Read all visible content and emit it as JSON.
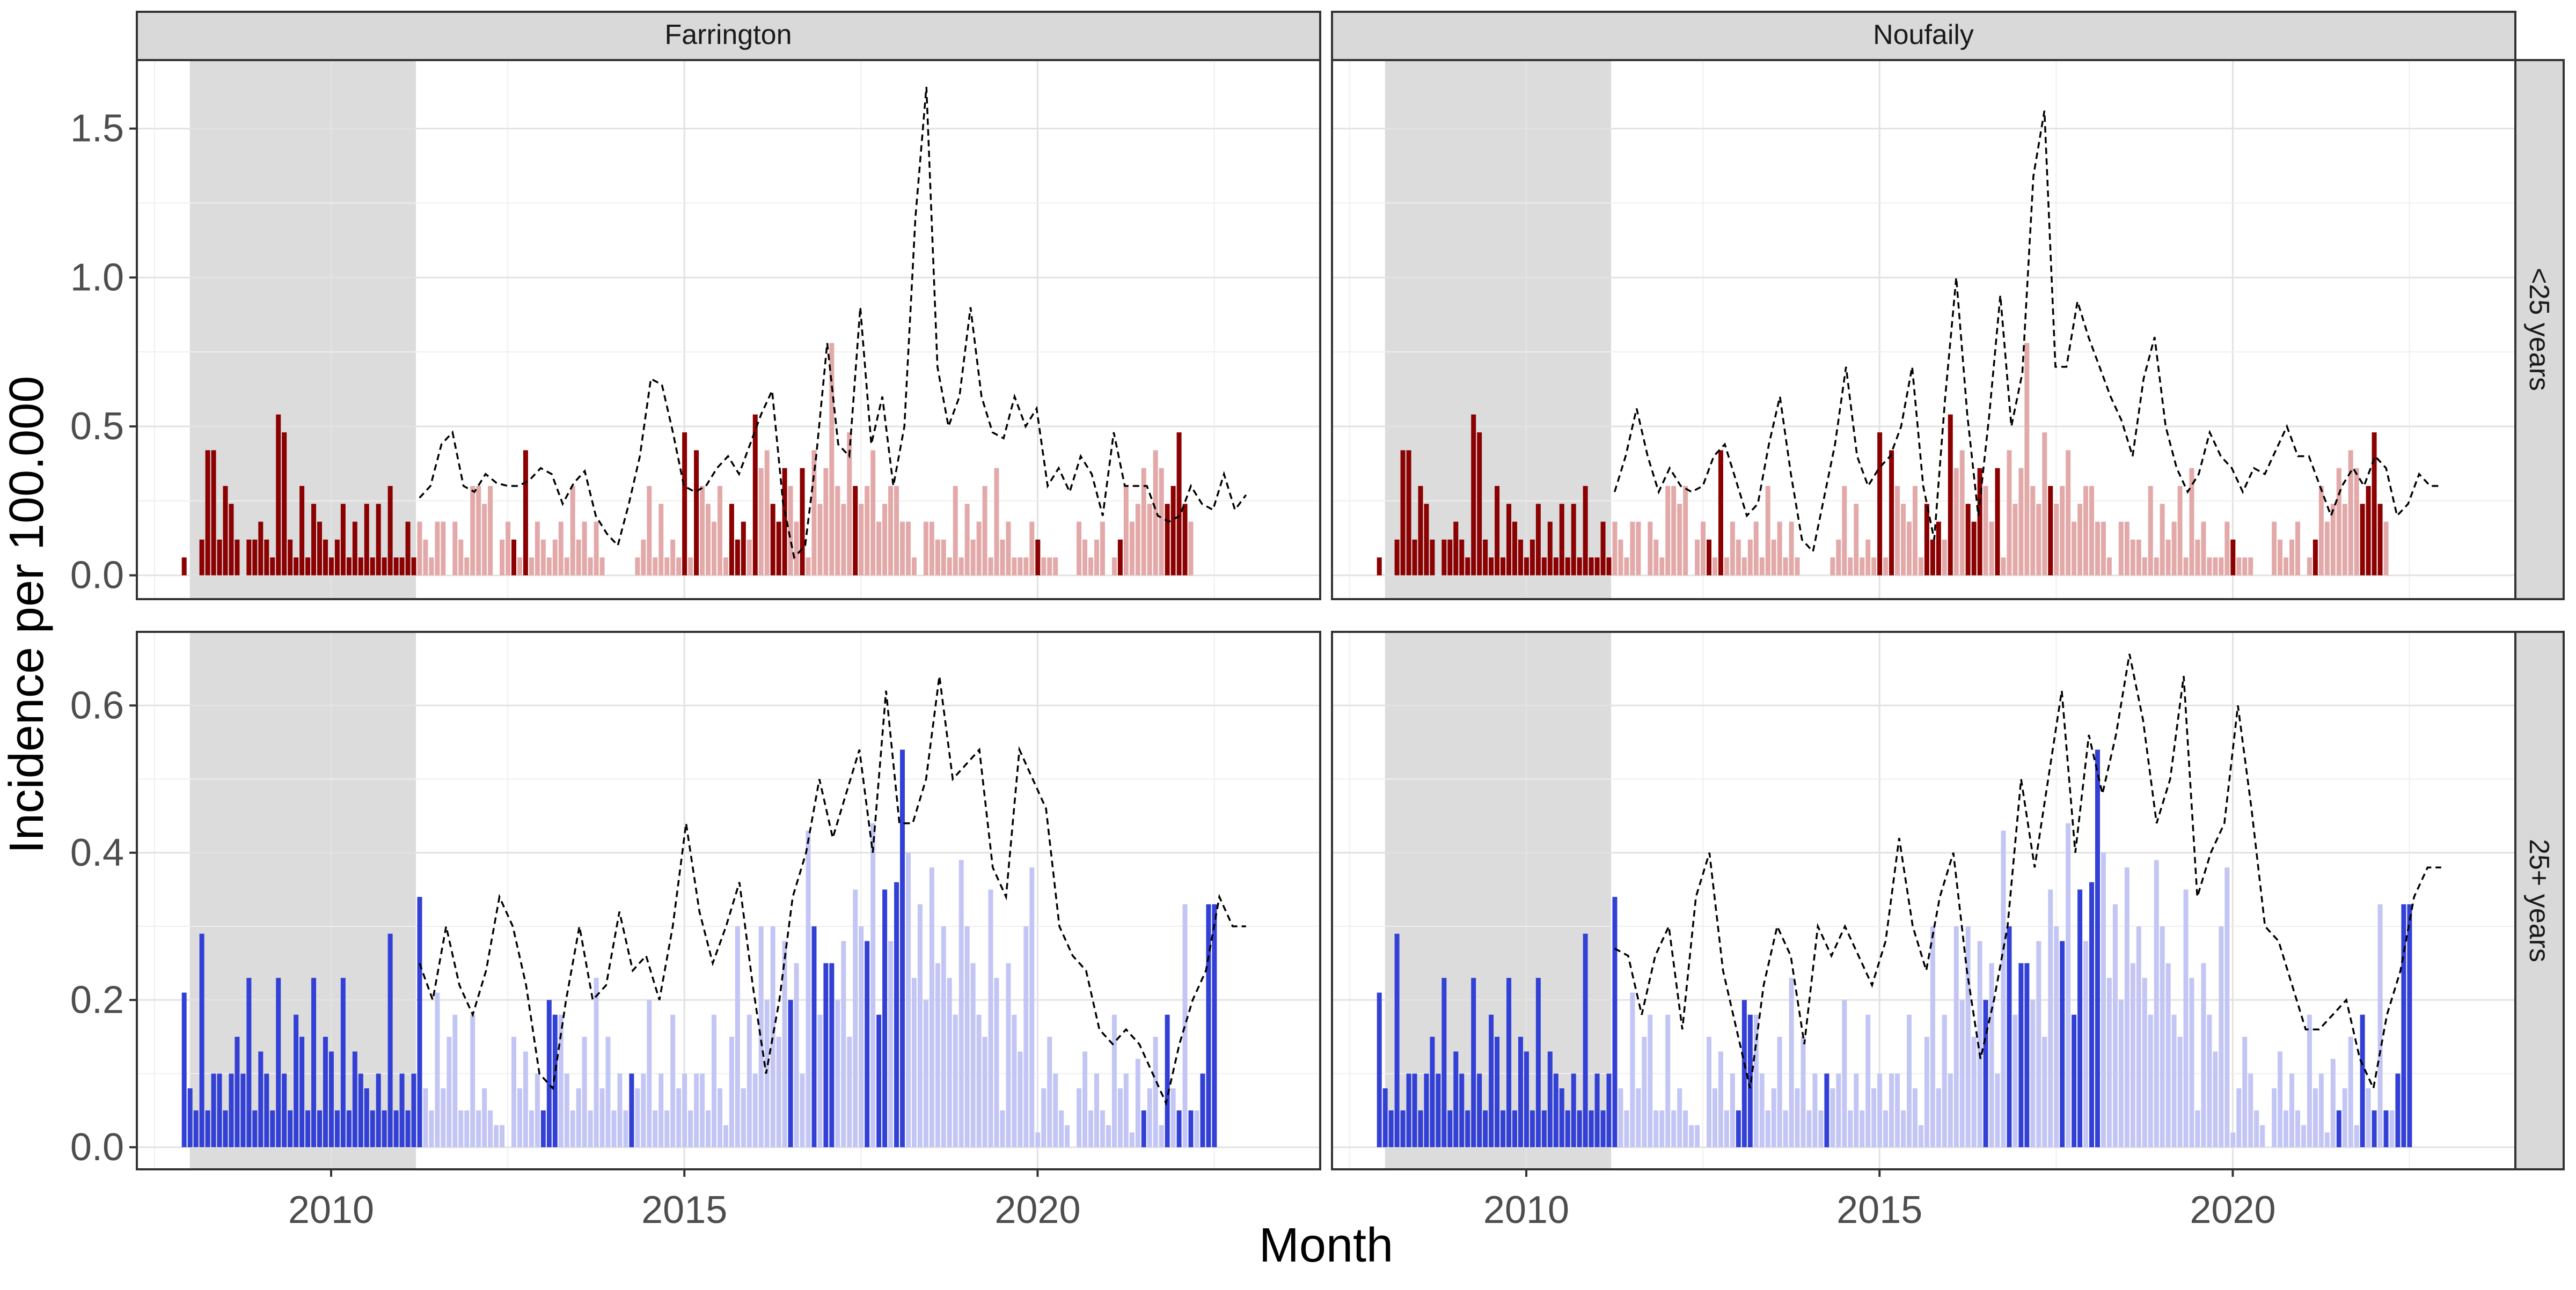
{
  "chart_data": {
    "type": "bar",
    "layout": "facet-grid 2x2",
    "xlabel": "Month",
    "ylabel": "Incidence per 100.000",
    "columns": [
      "Farrington",
      "Noufaily"
    ],
    "rows": [
      "<25 years",
      "25+ years"
    ],
    "x_ticks": [
      2010,
      2015,
      2020
    ],
    "x_range": [
      2007.25,
      2024.0
    ],
    "shaded_period": {
      "from": 2008.0,
      "to": 2011.2
    },
    "bar_start": 2007.92,
    "bar_step": 0.08333,
    "grid": true,
    "panels": [
      {
        "row": "<25 years",
        "y_ticks": [
          "0.0",
          "0.5",
          "1.0",
          "1.5"
        ],
        "y_tick_values": [
          0.0,
          0.5,
          1.0,
          1.5
        ],
        "ylim": [
          -0.08,
          1.73
        ],
        "colors": {
          "bar": "#8b0000",
          "bar_light": "#e3a9a9",
          "line": "#000000"
        },
        "values": [
          0.06,
          0.0,
          0.0,
          0.12,
          0.42,
          0.42,
          0.12,
          0.3,
          0.24,
          0.12,
          0.0,
          0.12,
          0.12,
          0.18,
          0.12,
          0.06,
          0.54,
          0.48,
          0.12,
          0.06,
          0.3,
          0.06,
          0.24,
          0.18,
          0.12,
          0.06,
          0.12,
          0.24,
          0.06,
          0.18,
          0.06,
          0.24,
          0.06,
          0.24,
          0.06,
          0.3,
          0.06,
          0.06,
          0.18,
          0.06,
          0.18,
          0.12,
          0.06,
          0.18,
          0.18,
          0.0,
          0.18,
          0.12,
          0.06,
          0.3,
          0.3,
          0.24,
          0.3,
          0.0,
          0.12,
          0.18,
          0.12,
          0.06,
          0.42,
          0.06,
          0.18,
          0.12,
          0.06,
          0.12,
          0.18,
          0.06,
          0.3,
          0.12,
          0.18,
          0.06,
          0.18,
          0.06,
          0.0,
          0.0,
          0.0,
          0.0,
          0.0,
          0.06,
          0.12,
          0.3,
          0.06,
          0.24,
          0.06,
          0.12,
          0.06,
          0.48,
          0.06,
          0.42,
          0.3,
          0.24,
          0.18,
          0.3,
          0.06,
          0.24,
          0.12,
          0.18,
          0.12,
          0.54,
          0.36,
          0.42,
          0.24,
          0.18,
          0.36,
          0.3,
          0.18,
          0.36,
          0.06,
          0.42,
          0.24,
          0.36,
          0.78,
          0.3,
          0.24,
          0.48,
          0.3,
          0.24,
          0.3,
          0.42,
          0.18,
          0.24,
          0.3,
          0.3,
          0.18,
          0.18,
          0.06,
          0.0,
          0.18,
          0.18,
          0.12,
          0.12,
          0.06,
          0.3,
          0.06,
          0.24,
          0.12,
          0.18,
          0.3,
          0.06,
          0.36,
          0.12,
          0.18,
          0.06,
          0.06,
          0.06,
          0.18,
          0.12,
          0.06,
          0.06,
          0.06,
          0.0,
          0.0,
          0.0,
          0.18,
          0.12,
          0.06,
          0.12,
          0.18,
          0.0,
          0.06,
          0.12,
          0.3,
          0.18,
          0.24,
          0.36,
          0.24,
          0.42,
          0.36,
          0.24,
          0.3,
          0.48,
          0.24,
          0.18
        ],
        "highlight": [
          0,
          1,
          2,
          3,
          4,
          5,
          6,
          7,
          8,
          9,
          10,
          11,
          12,
          13,
          14,
          15,
          16,
          17,
          18,
          19,
          20,
          21,
          22,
          23,
          24,
          25,
          26,
          27,
          28,
          29,
          30,
          31,
          32,
          33,
          34,
          35,
          36,
          37,
          38,
          39,
          56,
          58,
          85,
          87,
          93,
          94,
          95,
          97,
          100,
          101,
          102,
          105,
          114,
          145,
          159,
          167,
          168,
          169,
          170,
          172,
          175
        ]
      },
      {
        "row": "25+ years",
        "y_ticks": [
          "0.0",
          "0.2",
          "0.4",
          "0.6"
        ],
        "y_tick_values": [
          0.0,
          0.2,
          0.4,
          0.6
        ],
        "ylim": [
          -0.03,
          0.7
        ],
        "colors": {
          "bar": "#3340d6",
          "bar_light": "#c3c6f4",
          "line": "#000000"
        },
        "values": [
          0.21,
          0.08,
          0.05,
          0.29,
          0.05,
          0.1,
          0.1,
          0.05,
          0.1,
          0.15,
          0.1,
          0.23,
          0.05,
          0.13,
          0.1,
          0.05,
          0.23,
          0.1,
          0.05,
          0.18,
          0.15,
          0.05,
          0.23,
          0.05,
          0.15,
          0.13,
          0.05,
          0.23,
          0.05,
          0.13,
          0.1,
          0.08,
          0.05,
          0.1,
          0.05,
          0.29,
          0.05,
          0.1,
          0.05,
          0.1,
          0.34,
          0.08,
          0.05,
          0.21,
          0.08,
          0.15,
          0.18,
          0.05,
          0.05,
          0.18,
          0.05,
          0.08,
          0.05,
          0.03,
          0.03,
          0.0,
          0.15,
          0.08,
          0.13,
          0.05,
          0.1,
          0.05,
          0.2,
          0.18,
          0.18,
          0.1,
          0.05,
          0.08,
          0.15,
          0.05,
          0.23,
          0.08,
          0.15,
          0.05,
          0.1,
          0.05,
          0.1,
          0.08,
          0.1,
          0.2,
          0.05,
          0.1,
          0.05,
          0.18,
          0.08,
          0.1,
          0.05,
          0.1,
          0.1,
          0.05,
          0.18,
          0.08,
          0.03,
          0.15,
          0.3,
          0.08,
          0.18,
          0.1,
          0.3,
          0.2,
          0.3,
          0.15,
          0.28,
          0.2,
          0.25,
          0.1,
          0.43,
          0.3,
          0.18,
          0.25,
          0.25,
          0.2,
          0.28,
          0.15,
          0.35,
          0.3,
          0.28,
          0.44,
          0.18,
          0.35,
          0.28,
          0.36,
          0.54,
          0.4,
          0.23,
          0.33,
          0.2,
          0.38,
          0.25,
          0.3,
          0.23,
          0.18,
          0.39,
          0.3,
          0.25,
          0.18,
          0.15,
          0.35,
          0.23,
          0.05,
          0.25,
          0.18,
          0.13,
          0.3,
          0.38,
          0.02,
          0.08,
          0.15,
          0.1,
          0.05,
          0.03,
          0.0,
          0.08,
          0.13,
          0.05,
          0.1,
          0.05,
          0.03,
          0.18,
          0.08,
          0.1,
          0.02,
          0.12,
          0.05,
          0.08,
          0.15,
          0.03,
          0.18,
          0.08,
          0.05,
          0.33,
          0.05,
          0.05,
          0.1,
          0.33,
          0.33
        ],
        "highlight": [
          0,
          1,
          2,
          3,
          4,
          5,
          6,
          7,
          8,
          9,
          10,
          11,
          12,
          13,
          14,
          15,
          16,
          17,
          18,
          19,
          20,
          21,
          22,
          23,
          24,
          25,
          26,
          27,
          28,
          29,
          30,
          31,
          32,
          33,
          34,
          35,
          36,
          37,
          38,
          39,
          40,
          61,
          62,
          63,
          76,
          103,
          107,
          109,
          110,
          116,
          118,
          119,
          121,
          122,
          163,
          167,
          169,
          171,
          173,
          174,
          175
        ]
      }
    ],
    "lines": [
      {
        "column": "Farrington",
        "row": "<25 years",
        "values": [
          0.26,
          0.3,
          0.44,
          0.48,
          0.3,
          0.28,
          0.34,
          0.31,
          0.3,
          0.3,
          0.32,
          0.36,
          0.34,
          0.24,
          0.31,
          0.35,
          0.2,
          0.14,
          0.1,
          0.24,
          0.4,
          0.66,
          0.64,
          0.48,
          0.3,
          0.28,
          0.3,
          0.36,
          0.4,
          0.34,
          0.44,
          0.54,
          0.62,
          0.24,
          0.06,
          0.1,
          0.4,
          0.78,
          0.44,
          0.4,
          0.9,
          0.44,
          0.6,
          0.3,
          0.5,
          1.2,
          1.64,
          0.7,
          0.5,
          0.6,
          0.9,
          0.6,
          0.48,
          0.46,
          0.6,
          0.5,
          0.56,
          0.3,
          0.36,
          0.28,
          0.4,
          0.34,
          0.2,
          0.48,
          0.3,
          0.3,
          0.3,
          0.2,
          0.18,
          0.2,
          0.3,
          0.24,
          0.22,
          0.34,
          0.22,
          0.27
        ]
      },
      {
        "column": "Noufaily",
        "row": "<25 years",
        "values": [
          0.28,
          0.4,
          0.56,
          0.4,
          0.28,
          0.36,
          0.3,
          0.28,
          0.3,
          0.4,
          0.44,
          0.32,
          0.2,
          0.24,
          0.44,
          0.6,
          0.34,
          0.12,
          0.08,
          0.26,
          0.44,
          0.7,
          0.4,
          0.3,
          0.36,
          0.4,
          0.5,
          0.7,
          0.3,
          0.12,
          0.6,
          1.0,
          0.54,
          0.2,
          0.54,
          0.94,
          0.5,
          0.68,
          1.34,
          1.56,
          0.7,
          0.7,
          0.92,
          0.8,
          0.7,
          0.6,
          0.52,
          0.4,
          0.66,
          0.8,
          0.5,
          0.36,
          0.28,
          0.34,
          0.48,
          0.4,
          0.36,
          0.28,
          0.36,
          0.34,
          0.42,
          0.5,
          0.4,
          0.4,
          0.3,
          0.2,
          0.3,
          0.36,
          0.3,
          0.4,
          0.36,
          0.2,
          0.24,
          0.34,
          0.3,
          0.3
        ]
      },
      {
        "column": "Farrington",
        "row": "25+ years",
        "values": [
          0.25,
          0.2,
          0.3,
          0.22,
          0.18,
          0.24,
          0.34,
          0.3,
          0.22,
          0.1,
          0.08,
          0.2,
          0.3,
          0.2,
          0.22,
          0.32,
          0.24,
          0.26,
          0.2,
          0.3,
          0.44,
          0.32,
          0.25,
          0.3,
          0.36,
          0.22,
          0.1,
          0.2,
          0.34,
          0.4,
          0.5,
          0.42,
          0.48,
          0.54,
          0.4,
          0.62,
          0.44,
          0.44,
          0.5,
          0.64,
          0.5,
          0.52,
          0.54,
          0.38,
          0.34,
          0.54,
          0.5,
          0.46,
          0.3,
          0.26,
          0.24,
          0.16,
          0.14,
          0.16,
          0.14,
          0.1,
          0.06,
          0.14,
          0.2,
          0.24,
          0.34,
          0.3,
          0.3
        ]
      },
      {
        "column": "Noufaily",
        "row": "25+ years",
        "values": [
          0.27,
          0.26,
          0.18,
          0.26,
          0.3,
          0.16,
          0.34,
          0.4,
          0.24,
          0.16,
          0.08,
          0.22,
          0.3,
          0.26,
          0.14,
          0.3,
          0.26,
          0.3,
          0.26,
          0.22,
          0.28,
          0.42,
          0.3,
          0.24,
          0.34,
          0.4,
          0.24,
          0.12,
          0.2,
          0.3,
          0.5,
          0.38,
          0.5,
          0.62,
          0.4,
          0.56,
          0.48,
          0.56,
          0.67,
          0.58,
          0.44,
          0.5,
          0.64,
          0.34,
          0.4,
          0.44,
          0.6,
          0.46,
          0.3,
          0.28,
          0.22,
          0.16,
          0.16,
          0.18,
          0.2,
          0.12,
          0.08,
          0.18,
          0.24,
          0.34,
          0.38,
          0.38
        ]
      }
    ]
  }
}
